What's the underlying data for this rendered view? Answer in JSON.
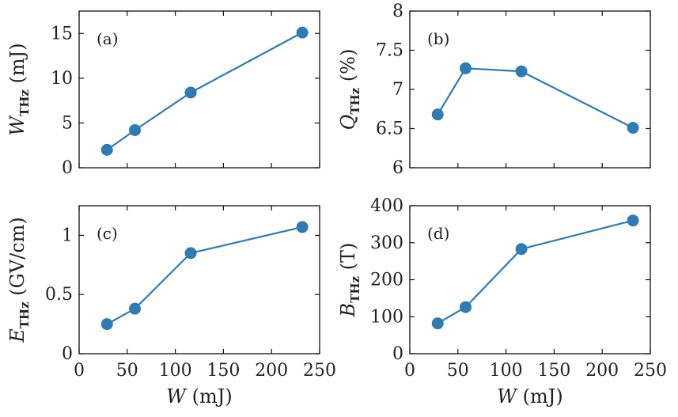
{
  "chart_data": [
    {
      "panel": "(a)",
      "type": "line",
      "x": [
        29,
        58,
        116,
        232
      ],
      "values": [
        2.0,
        4.2,
        8.4,
        15.1
      ],
      "xlim": [
        0,
        250
      ],
      "ylim": [
        0,
        17.5
      ],
      "xticks": [
        "0",
        "50",
        "100",
        "150",
        "200",
        "250"
      ],
      "yticks": [
        "0",
        "5",
        "10",
        "15"
      ],
      "xlabel": "",
      "ylabel_main": "W",
      "ylabel_sub": "THz",
      "ylabel_unit": " (mJ)",
      "grid": false,
      "color": "#2e7bb6"
    },
    {
      "panel": "(b)",
      "type": "line",
      "x": [
        29,
        58,
        116,
        232
      ],
      "values": [
        6.68,
        7.27,
        7.23,
        6.51
      ],
      "xlim": [
        0,
        250
      ],
      "ylim": [
        6,
        8
      ],
      "xticks": [
        "0",
        "50",
        "100",
        "150",
        "200",
        "250"
      ],
      "yticks": [
        "6",
        "6.5",
        "7",
        "7.5",
        "8"
      ],
      "xlabel": "",
      "ylabel_main": "Q",
      "ylabel_sub": "THz",
      "ylabel_unit": " (%)",
      "grid": false,
      "color": "#2e7bb6"
    },
    {
      "panel": "(c)",
      "type": "line",
      "x": [
        29,
        58,
        116,
        232
      ],
      "values": [
        0.25,
        0.38,
        0.85,
        1.07
      ],
      "xlim": [
        0,
        250
      ],
      "ylim": [
        0,
        1.25
      ],
      "xticks": [
        "0",
        "50",
        "100",
        "150",
        "200",
        "250"
      ],
      "yticks": [
        "0",
        "0.5",
        "1"
      ],
      "xlabel_main": "W",
      "xlabel_unit": " (mJ)",
      "ylabel_main": "E",
      "ylabel_sub": "THz",
      "ylabel_unit": " (GV/cm)",
      "grid": false,
      "color": "#2e7bb6"
    },
    {
      "panel": "(d)",
      "type": "line",
      "x": [
        29,
        58,
        116,
        232
      ],
      "values": [
        82,
        126,
        283,
        360
      ],
      "xlim": [
        0,
        250
      ],
      "ylim": [
        0,
        400
      ],
      "xticks": [
        "0",
        "50",
        "100",
        "150",
        "200",
        "250"
      ],
      "yticks": [
        "0",
        "100",
        "200",
        "300",
        "400"
      ],
      "xlabel_main": "W",
      "xlabel_unit": " (mJ)",
      "ylabel_main": "B",
      "ylabel_sub": "THz",
      "ylabel_unit": " (T)",
      "grid": false,
      "color": "#2e7bb6"
    }
  ]
}
